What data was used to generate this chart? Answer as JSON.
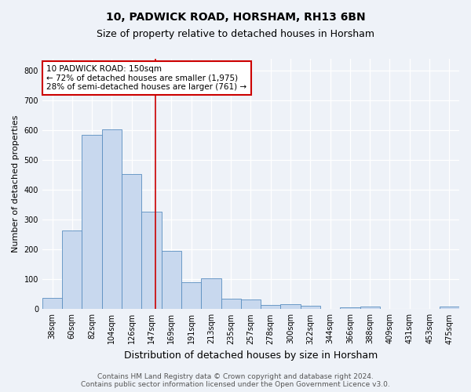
{
  "title": "10, PADWICK ROAD, HORSHAM, RH13 6BN",
  "subtitle": "Size of property relative to detached houses in Horsham",
  "xlabel": "Distribution of detached houses by size in Horsham",
  "ylabel": "Number of detached properties",
  "categories": [
    "38sqm",
    "60sqm",
    "82sqm",
    "104sqm",
    "126sqm",
    "147sqm",
    "169sqm",
    "191sqm",
    "213sqm",
    "235sqm",
    "257sqm",
    "278sqm",
    "300sqm",
    "322sqm",
    "344sqm",
    "366sqm",
    "388sqm",
    "409sqm",
    "431sqm",
    "453sqm",
    "475sqm"
  ],
  "values": [
    37,
    265,
    585,
    603,
    453,
    328,
    196,
    91,
    103,
    36,
    32,
    14,
    16,
    11,
    0,
    5,
    8,
    0,
    0,
    0,
    8
  ],
  "bar_color": "#c8d8ee",
  "bar_edge_color": "#5a8ec0",
  "vline_x_index": 5,
  "vline_color": "#cc0000",
  "annotation_lines": [
    "10 PADWICK ROAD: 150sqm",
    "← 72% of detached houses are smaller (1,975)",
    "28% of semi-detached houses are larger (761) →"
  ],
  "ylim": [
    0,
    840
  ],
  "yticks": [
    0,
    100,
    200,
    300,
    400,
    500,
    600,
    700,
    800
  ],
  "background_color": "#eef2f8",
  "grid_color": "#ffffff",
  "footer_line1": "Contains HM Land Registry data © Crown copyright and database right 2024.",
  "footer_line2": "Contains public sector information licensed under the Open Government Licence v3.0.",
  "title_fontsize": 10,
  "subtitle_fontsize": 9,
  "xlabel_fontsize": 9,
  "ylabel_fontsize": 8,
  "tick_fontsize": 7,
  "annotation_fontsize": 7.5,
  "footer_fontsize": 6.5
}
